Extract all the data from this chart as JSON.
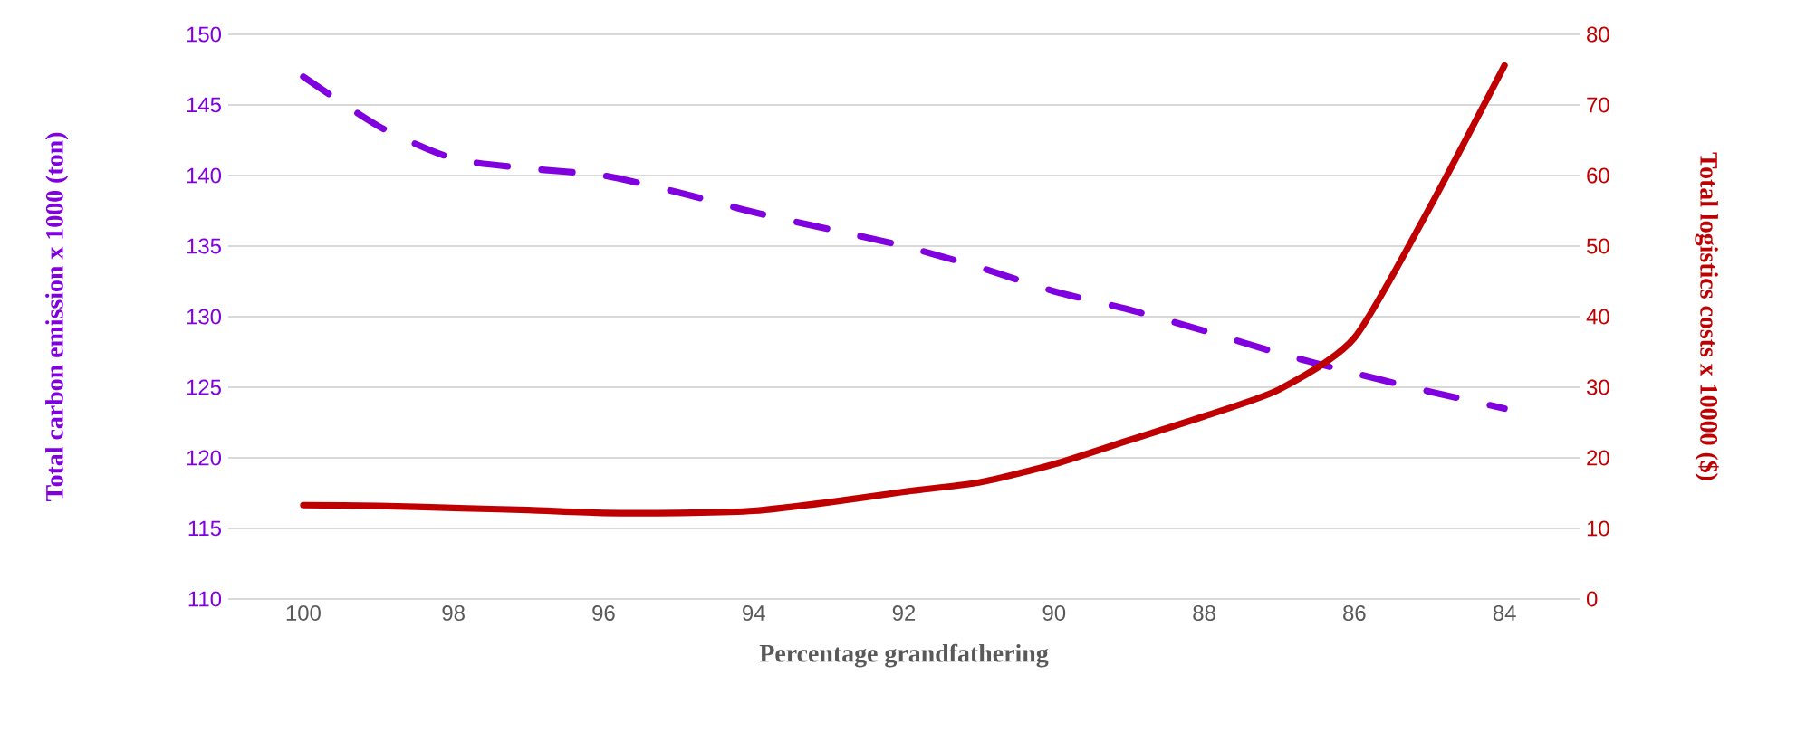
{
  "chart_data": {
    "type": "line",
    "xlabel": "Percentage grandfathering",
    "ylabel": "Total carbon emission x 1000 (ton)",
    "y2label": "Total logistics costs x 10000 ($)",
    "categories": [
      "100",
      null,
      "98",
      null,
      "96",
      null,
      "94",
      null,
      "92",
      null,
      "90",
      null,
      "88",
      null,
      "86",
      null,
      "84"
    ],
    "series": [
      {
        "color": "#8000e0",
        "line_style": "dashed",
        "values": [
          147.0,
          143.5,
          141.2,
          140.5,
          140.0,
          138.8,
          137.4,
          136.2,
          135.0,
          133.5,
          131.8,
          130.5,
          129.0,
          127.4,
          126.0,
          124.7,
          123.5
        ]
      },
      {
        "color": "#c00000",
        "line_style": "solid",
        "axis": "y2",
        "values": [
          13.3,
          13.2,
          12.9,
          12.6,
          12.2,
          12.2,
          12.5,
          13.7,
          15.2,
          16.5,
          19.1,
          22.5,
          25.9,
          29.7,
          37.0,
          55.4,
          75.6
        ]
      }
    ],
    "ylim": [
      110,
      150
    ],
    "yticks": [
      110,
      115,
      120,
      125,
      130,
      135,
      140,
      145,
      150
    ],
    "y2lim": [
      0,
      80
    ],
    "y2ticks": [
      0,
      10,
      20,
      30,
      40,
      50,
      60,
      70,
      80
    ],
    "grid": "y"
  }
}
